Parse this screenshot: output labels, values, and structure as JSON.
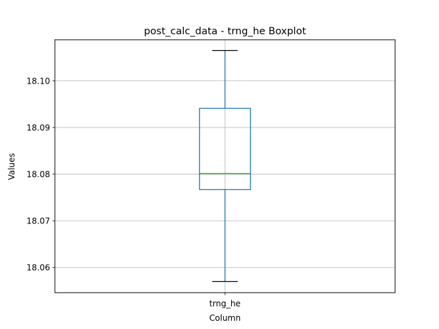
{
  "chart_data": {
    "type": "boxplot",
    "title": "post_calc_data - trng_he Boxplot",
    "xlabel": "Column",
    "ylabel": "Values",
    "categories": [
      "trng_he"
    ],
    "boxes": [
      {
        "name": "trng_he",
        "whisker_low": 18.057,
        "q1": 18.0767,
        "median": 18.0801,
        "q3": 18.0941,
        "whisker_high": 18.1065
      }
    ],
    "ylim": [
      18.0546,
      18.1088
    ],
    "yticks": [
      18.06,
      18.07,
      18.08,
      18.09,
      18.1
    ],
    "ytick_labels": [
      "18.06",
      "18.07",
      "18.08",
      "18.09",
      "18.10"
    ],
    "grid": true,
    "colors": {
      "box": "#1f77b4",
      "median": "#2ca02c",
      "whisker": "#1f77b4",
      "cap": "#000000",
      "grid": "#b0b0b0"
    }
  }
}
